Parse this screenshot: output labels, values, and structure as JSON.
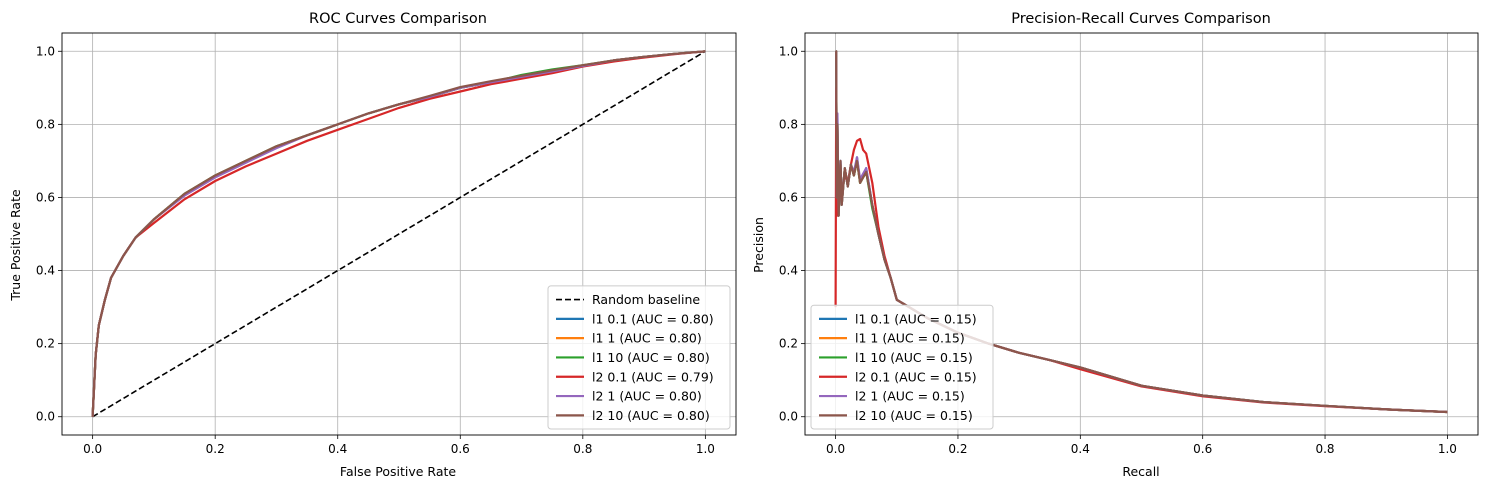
{
  "chart_data": [
    {
      "type": "line",
      "title": "ROC Curves Comparison",
      "xlabel": "False Positive Rate",
      "ylabel": "True Positive Rate",
      "xlim": [
        -0.05,
        1.05
      ],
      "ylim": [
        -0.05,
        1.05
      ],
      "xticks": [
        "0.0",
        "0.2",
        "0.4",
        "0.6",
        "0.8",
        "1.0"
      ],
      "yticks": [
        "0.0",
        "0.2",
        "0.4",
        "0.6",
        "0.8",
        "1.0"
      ],
      "grid": true,
      "legend_position": "lower-right",
      "baseline": {
        "name": "Random baseline",
        "color": "#000000",
        "style": "dashed",
        "x": [
          0,
          1
        ],
        "y": [
          0,
          1
        ]
      },
      "series": [
        {
          "name": "l1 0.1 (AUC = 0.80)",
          "color": "#1f77b4",
          "x": [
            0,
            0.005,
            0.01,
            0.02,
            0.03,
            0.05,
            0.07,
            0.1,
            0.15,
            0.2,
            0.25,
            0.3,
            0.35,
            0.4,
            0.45,
            0.5,
            0.55,
            0.6,
            0.65,
            0.7,
            0.75,
            0.8,
            0.85,
            0.9,
            0.95,
            1.0
          ],
          "y": [
            0,
            0.17,
            0.25,
            0.32,
            0.38,
            0.44,
            0.49,
            0.54,
            0.61,
            0.66,
            0.7,
            0.74,
            0.77,
            0.8,
            0.83,
            0.855,
            0.875,
            0.9,
            0.915,
            0.93,
            0.945,
            0.96,
            0.975,
            0.985,
            0.993,
            1.0
          ]
        },
        {
          "name": "l1 1 (AUC = 0.80)",
          "color": "#ff7f0e",
          "x": [
            0,
            0.005,
            0.01,
            0.02,
            0.03,
            0.05,
            0.07,
            0.1,
            0.15,
            0.2,
            0.25,
            0.3,
            0.35,
            0.4,
            0.45,
            0.5,
            0.55,
            0.6,
            0.65,
            0.7,
            0.75,
            0.8,
            0.85,
            0.9,
            0.95,
            1.0
          ],
          "y": [
            0,
            0.17,
            0.25,
            0.32,
            0.38,
            0.44,
            0.49,
            0.54,
            0.61,
            0.66,
            0.7,
            0.74,
            0.77,
            0.8,
            0.83,
            0.855,
            0.875,
            0.9,
            0.915,
            0.93,
            0.945,
            0.96,
            0.975,
            0.985,
            0.993,
            1.0
          ]
        },
        {
          "name": "l1 10 (AUC = 0.80)",
          "color": "#2ca02c",
          "x": [
            0,
            0.005,
            0.01,
            0.02,
            0.03,
            0.05,
            0.07,
            0.1,
            0.15,
            0.2,
            0.25,
            0.3,
            0.35,
            0.4,
            0.45,
            0.5,
            0.55,
            0.6,
            0.65,
            0.7,
            0.75,
            0.8,
            0.85,
            0.9,
            0.95,
            1.0
          ],
          "y": [
            0,
            0.17,
            0.25,
            0.32,
            0.38,
            0.44,
            0.49,
            0.54,
            0.61,
            0.66,
            0.7,
            0.74,
            0.77,
            0.8,
            0.83,
            0.855,
            0.875,
            0.9,
            0.915,
            0.935,
            0.95,
            0.962,
            0.975,
            0.985,
            0.993,
            1.0
          ]
        },
        {
          "name": "l2 0.1 (AUC = 0.79)",
          "color": "#d62728",
          "x": [
            0,
            0.005,
            0.01,
            0.02,
            0.03,
            0.05,
            0.07,
            0.1,
            0.15,
            0.2,
            0.25,
            0.3,
            0.35,
            0.4,
            0.45,
            0.5,
            0.55,
            0.6,
            0.65,
            0.7,
            0.75,
            0.8,
            0.85,
            0.9,
            0.95,
            1.0
          ],
          "y": [
            0,
            0.17,
            0.25,
            0.32,
            0.38,
            0.44,
            0.49,
            0.53,
            0.595,
            0.645,
            0.685,
            0.72,
            0.755,
            0.785,
            0.815,
            0.845,
            0.87,
            0.89,
            0.91,
            0.925,
            0.94,
            0.958,
            0.972,
            0.983,
            0.992,
            1.0
          ]
        },
        {
          "name": "l2 1 (AUC = 0.80)",
          "color": "#9467bd",
          "x": [
            0,
            0.005,
            0.01,
            0.02,
            0.03,
            0.05,
            0.07,
            0.1,
            0.15,
            0.2,
            0.25,
            0.3,
            0.35,
            0.4,
            0.45,
            0.5,
            0.55,
            0.6,
            0.65,
            0.7,
            0.75,
            0.8,
            0.85,
            0.9,
            0.95,
            1.0
          ],
          "y": [
            0,
            0.17,
            0.25,
            0.32,
            0.38,
            0.44,
            0.49,
            0.54,
            0.605,
            0.655,
            0.695,
            0.735,
            0.77,
            0.8,
            0.83,
            0.855,
            0.875,
            0.9,
            0.915,
            0.93,
            0.945,
            0.96,
            0.975,
            0.985,
            0.993,
            1.0
          ]
        },
        {
          "name": "l2 10 (AUC = 0.80)",
          "color": "#8c564b",
          "x": [
            0,
            0.005,
            0.01,
            0.02,
            0.03,
            0.05,
            0.07,
            0.1,
            0.15,
            0.2,
            0.25,
            0.3,
            0.35,
            0.4,
            0.45,
            0.5,
            0.55,
            0.6,
            0.65,
            0.7,
            0.75,
            0.8,
            0.85,
            0.9,
            0.95,
            1.0
          ],
          "y": [
            0,
            0.17,
            0.25,
            0.32,
            0.38,
            0.44,
            0.49,
            0.54,
            0.61,
            0.66,
            0.7,
            0.74,
            0.77,
            0.8,
            0.83,
            0.855,
            0.878,
            0.902,
            0.918,
            0.933,
            0.948,
            0.962,
            0.975,
            0.985,
            0.993,
            1.0
          ]
        }
      ]
    },
    {
      "type": "line",
      "title": "Precision-Recall Curves Comparison",
      "xlabel": "Recall",
      "ylabel": "Precision",
      "xlim": [
        -0.05,
        1.05
      ],
      "ylim": [
        -0.05,
        1.05
      ],
      "xticks": [
        "0.0",
        "0.2",
        "0.4",
        "0.6",
        "0.8",
        "1.0"
      ],
      "yticks": [
        "0.0",
        "0.2",
        "0.4",
        "0.6",
        "0.8",
        "1.0"
      ],
      "grid": true,
      "legend_position": "lower-left",
      "series": [
        {
          "name": "l1 0.1 (AUC = 0.15)",
          "color": "#1f77b4",
          "x": [
            0,
            0.001,
            0.002,
            0.003,
            0.005,
            0.008,
            0.01,
            0.015,
            0.02,
            0.025,
            0.03,
            0.035,
            0.04,
            0.05,
            0.06,
            0.07,
            0.08,
            0.09,
            0.1,
            0.12,
            0.15,
            0.2,
            0.25,
            0.3,
            0.35,
            0.4,
            0.5,
            0.6,
            0.7,
            0.8,
            0.9,
            1.0
          ],
          "y": [
            1.0,
            1.0,
            0.6,
            0.82,
            0.55,
            0.7,
            0.58,
            0.68,
            0.63,
            0.69,
            0.66,
            0.71,
            0.64,
            0.68,
            0.58,
            0.5,
            0.43,
            0.38,
            0.32,
            0.3,
            0.27,
            0.23,
            0.2,
            0.175,
            0.155,
            0.135,
            0.085,
            0.058,
            0.04,
            0.03,
            0.02,
            0.013
          ]
        },
        {
          "name": "l1 1 (AUC = 0.15)",
          "color": "#ff7f0e",
          "x": [
            0,
            0.001,
            0.002,
            0.003,
            0.005,
            0.008,
            0.01,
            0.015,
            0.02,
            0.025,
            0.03,
            0.035,
            0.04,
            0.05,
            0.06,
            0.07,
            0.08,
            0.09,
            0.1,
            0.12,
            0.15,
            0.2,
            0.25,
            0.3,
            0.35,
            0.4,
            0.5,
            0.6,
            0.7,
            0.8,
            0.9,
            1.0
          ],
          "y": [
            1.0,
            1.0,
            0.6,
            0.8,
            0.55,
            0.69,
            0.58,
            0.68,
            0.63,
            0.69,
            0.66,
            0.7,
            0.64,
            0.67,
            0.58,
            0.5,
            0.43,
            0.38,
            0.32,
            0.3,
            0.27,
            0.23,
            0.2,
            0.175,
            0.155,
            0.135,
            0.085,
            0.058,
            0.04,
            0.03,
            0.02,
            0.013
          ]
        },
        {
          "name": "l1 10 (AUC = 0.15)",
          "color": "#2ca02c",
          "x": [
            0,
            0.001,
            0.002,
            0.003,
            0.005,
            0.008,
            0.01,
            0.015,
            0.02,
            0.025,
            0.03,
            0.035,
            0.04,
            0.05,
            0.06,
            0.07,
            0.08,
            0.09,
            0.1,
            0.12,
            0.15,
            0.2,
            0.25,
            0.3,
            0.35,
            0.4,
            0.5,
            0.6,
            0.7,
            0.8,
            0.9,
            1.0
          ],
          "y": [
            1.0,
            1.0,
            0.6,
            0.8,
            0.55,
            0.69,
            0.58,
            0.68,
            0.63,
            0.69,
            0.66,
            0.7,
            0.64,
            0.67,
            0.57,
            0.5,
            0.43,
            0.38,
            0.32,
            0.3,
            0.27,
            0.23,
            0.2,
            0.175,
            0.155,
            0.135,
            0.085,
            0.058,
            0.04,
            0.03,
            0.02,
            0.013
          ]
        },
        {
          "name": "l2 0.1 (AUC = 0.15)",
          "color": "#d62728",
          "x": [
            0,
            0.001,
            0.002,
            0.003,
            0.005,
            0.008,
            0.01,
            0.015,
            0.02,
            0.025,
            0.03,
            0.035,
            0.04,
            0.045,
            0.05,
            0.06,
            0.07,
            0.08,
            0.09,
            0.1,
            0.12,
            0.15,
            0.2,
            0.25,
            0.3,
            0.35,
            0.4,
            0.5,
            0.6,
            0.7,
            0.8,
            0.9,
            1.0
          ],
          "y": [
            0.3,
            0.9,
            0.55,
            0.75,
            0.6,
            0.65,
            0.62,
            0.66,
            0.64,
            0.69,
            0.73,
            0.755,
            0.76,
            0.73,
            0.72,
            0.64,
            0.52,
            0.44,
            0.38,
            0.32,
            0.3,
            0.27,
            0.23,
            0.2,
            0.175,
            0.155,
            0.13,
            0.083,
            0.056,
            0.039,
            0.029,
            0.02,
            0.013
          ]
        },
        {
          "name": "l2 1 (AUC = 0.15)",
          "color": "#9467bd",
          "x": [
            0,
            0.001,
            0.002,
            0.003,
            0.005,
            0.008,
            0.01,
            0.015,
            0.02,
            0.025,
            0.03,
            0.035,
            0.04,
            0.05,
            0.06,
            0.07,
            0.08,
            0.09,
            0.1,
            0.12,
            0.15,
            0.2,
            0.25,
            0.3,
            0.35,
            0.4,
            0.5,
            0.6,
            0.7,
            0.8,
            0.9,
            1.0
          ],
          "y": [
            1.0,
            1.0,
            0.6,
            0.83,
            0.55,
            0.7,
            0.58,
            0.68,
            0.63,
            0.69,
            0.67,
            0.71,
            0.65,
            0.68,
            0.58,
            0.5,
            0.43,
            0.38,
            0.32,
            0.3,
            0.27,
            0.23,
            0.2,
            0.175,
            0.155,
            0.135,
            0.085,
            0.058,
            0.04,
            0.03,
            0.02,
            0.013
          ]
        },
        {
          "name": "l2 10 (AUC = 0.15)",
          "color": "#8c564b",
          "x": [
            0,
            0.001,
            0.002,
            0.003,
            0.005,
            0.008,
            0.01,
            0.015,
            0.02,
            0.025,
            0.03,
            0.035,
            0.04,
            0.05,
            0.06,
            0.07,
            0.08,
            0.09,
            0.1,
            0.12,
            0.15,
            0.2,
            0.25,
            0.3,
            0.35,
            0.4,
            0.5,
            0.6,
            0.7,
            0.8,
            0.9,
            1.0
          ],
          "y": [
            1.0,
            1.0,
            0.6,
            0.8,
            0.55,
            0.7,
            0.58,
            0.68,
            0.63,
            0.69,
            0.66,
            0.7,
            0.64,
            0.67,
            0.58,
            0.5,
            0.43,
            0.38,
            0.32,
            0.3,
            0.27,
            0.23,
            0.2,
            0.175,
            0.155,
            0.135,
            0.085,
            0.058,
            0.04,
            0.03,
            0.02,
            0.013
          ]
        }
      ]
    }
  ]
}
